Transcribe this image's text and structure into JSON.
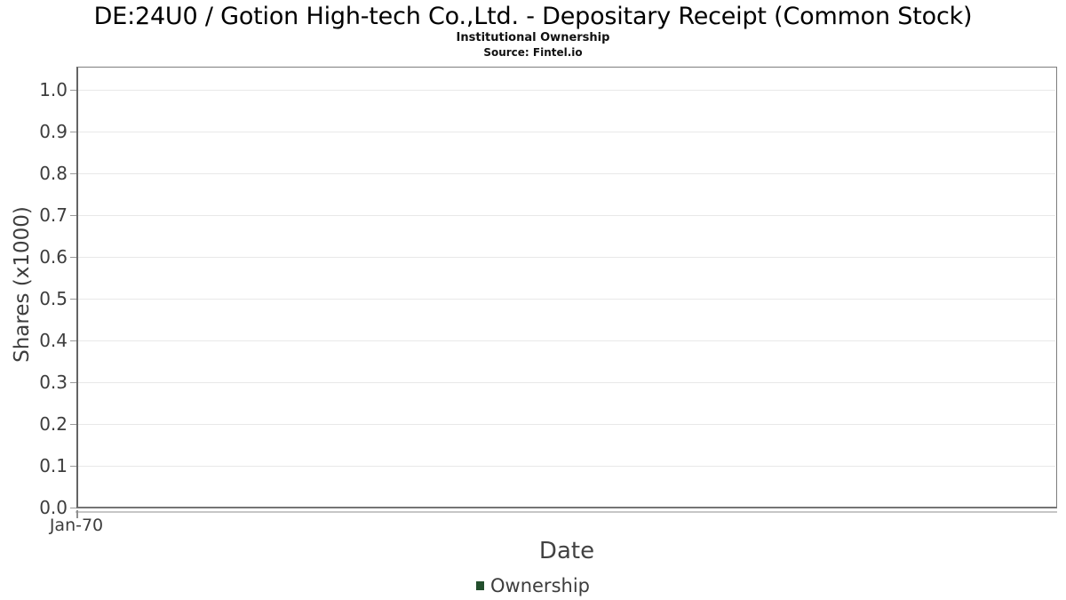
{
  "chart_data": {
    "type": "line",
    "title": "DE:24U0 / Gotion High-tech Co.,Ltd. - Depositary Receipt (Common Stock)",
    "subtitle": "Institutional Ownership",
    "source_note": "Source: Fintel.io",
    "xlabel": "Date",
    "ylabel": "Shares (x1000)",
    "x_tick_labels": [
      "Jan-70"
    ],
    "y_tick_labels": [
      "0.0",
      "0.1",
      "0.2",
      "0.3",
      "0.4",
      "0.5",
      "0.6",
      "0.7",
      "0.8",
      "0.9",
      "1.0"
    ],
    "ylim": [
      0.0,
      1.05
    ],
    "grid": "horizontal",
    "legend": {
      "position": "bottom-center",
      "entries": [
        {
          "label": "Ownership",
          "color": "#234f2d"
        }
      ]
    },
    "series": [
      {
        "name": "Ownership",
        "x": [],
        "y": []
      }
    ]
  },
  "colors": {
    "background": "#ffffff",
    "plot_border": "#7e7e7e",
    "gridline": "#e8e8e8",
    "tick_mark": "#9a9a9a",
    "tick_label_text": "#3d3d3d",
    "axis_title_text": "#424242",
    "title_text": "#000000",
    "legend_marker_green": "#234f2d"
  }
}
